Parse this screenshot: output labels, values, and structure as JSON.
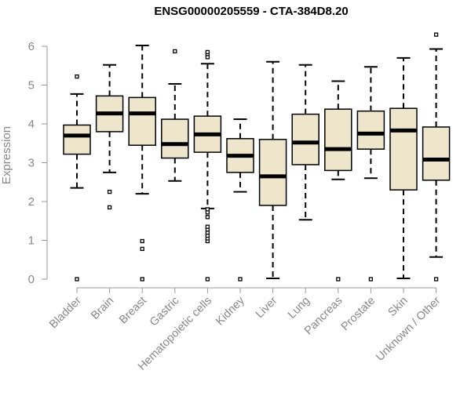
{
  "chart_data": {
    "type": "boxplot",
    "title": "ENSG00000205559 - CTA-384D8.20",
    "xlabel": "",
    "ylabel": "Expression",
    "ylim": [
      0,
      6.3
    ],
    "yticks": [
      0,
      1,
      2,
      3,
      4,
      5,
      6
    ],
    "colors": {
      "box_fill": "#EDE6CC",
      "axis": "#999999",
      "tick_label": "#888888",
      "stroke": "#000000"
    },
    "categories": [
      "Bladder",
      "Brain",
      "Breast",
      "Gastric",
      "Hematopoietic cells",
      "Kidney",
      "Liver",
      "Lung",
      "Pancreas",
      "Prostate",
      "Skin",
      "Unknown / Other"
    ],
    "boxes": [
      {
        "label": "Bladder",
        "whisker_low": 2.35,
        "q1": 3.22,
        "median": 3.7,
        "q3": 3.97,
        "whisker_high": 4.77,
        "outliers": [
          0,
          5.22
        ]
      },
      {
        "label": "Brain",
        "whisker_low": 2.75,
        "q1": 3.8,
        "median": 4.27,
        "q3": 4.72,
        "whisker_high": 5.52,
        "outliers": [
          1.85,
          2.25
        ]
      },
      {
        "label": "Breast",
        "whisker_low": 2.2,
        "q1": 3.45,
        "median": 4.27,
        "q3": 4.68,
        "whisker_high": 6.02,
        "outliers": [
          0,
          0.78,
          0.98
        ]
      },
      {
        "label": "Gastric",
        "whisker_low": 2.53,
        "q1": 3.12,
        "median": 3.48,
        "q3": 4.12,
        "whisker_high": 5.03,
        "outliers": [
          5.87
        ]
      },
      {
        "label": "Hematopoietic cells",
        "whisker_low": 1.82,
        "q1": 3.27,
        "median": 3.73,
        "q3": 4.2,
        "whisker_high": 5.55,
        "outliers": [
          0,
          0.98,
          1.05,
          1.12,
          1.2,
          1.28,
          1.35,
          1.6,
          1.72,
          1.8,
          5.72,
          5.8,
          5.85
        ]
      },
      {
        "label": "Kidney",
        "whisker_low": 2.25,
        "q1": 2.75,
        "median": 3.18,
        "q3": 3.62,
        "whisker_high": 4.12,
        "outliers": [
          0
        ]
      },
      {
        "label": "Liver",
        "whisker_low": 0.02,
        "q1": 1.9,
        "median": 2.65,
        "q3": 3.6,
        "whisker_high": 5.6,
        "outliers": []
      },
      {
        "label": "Lung",
        "whisker_low": 1.53,
        "q1": 2.95,
        "median": 3.52,
        "q3": 4.25,
        "whisker_high": 5.52,
        "outliers": []
      },
      {
        "label": "Pancreas",
        "whisker_low": 2.57,
        "q1": 2.8,
        "median": 3.35,
        "q3": 4.38,
        "whisker_high": 5.1,
        "outliers": [
          0
        ]
      },
      {
        "label": "Prostate",
        "whisker_low": 2.6,
        "q1": 3.35,
        "median": 3.75,
        "q3": 4.33,
        "whisker_high": 5.47,
        "outliers": [
          0
        ]
      },
      {
        "label": "Skin",
        "whisker_low": 0.02,
        "q1": 2.3,
        "median": 3.83,
        "q3": 4.4,
        "whisker_high": 5.7,
        "outliers": []
      },
      {
        "label": "Unknown / Other",
        "whisker_low": 0.57,
        "q1": 2.55,
        "median": 3.08,
        "q3": 3.92,
        "whisker_high": 5.93,
        "outliers": [
          0,
          6.3
        ]
      }
    ]
  }
}
